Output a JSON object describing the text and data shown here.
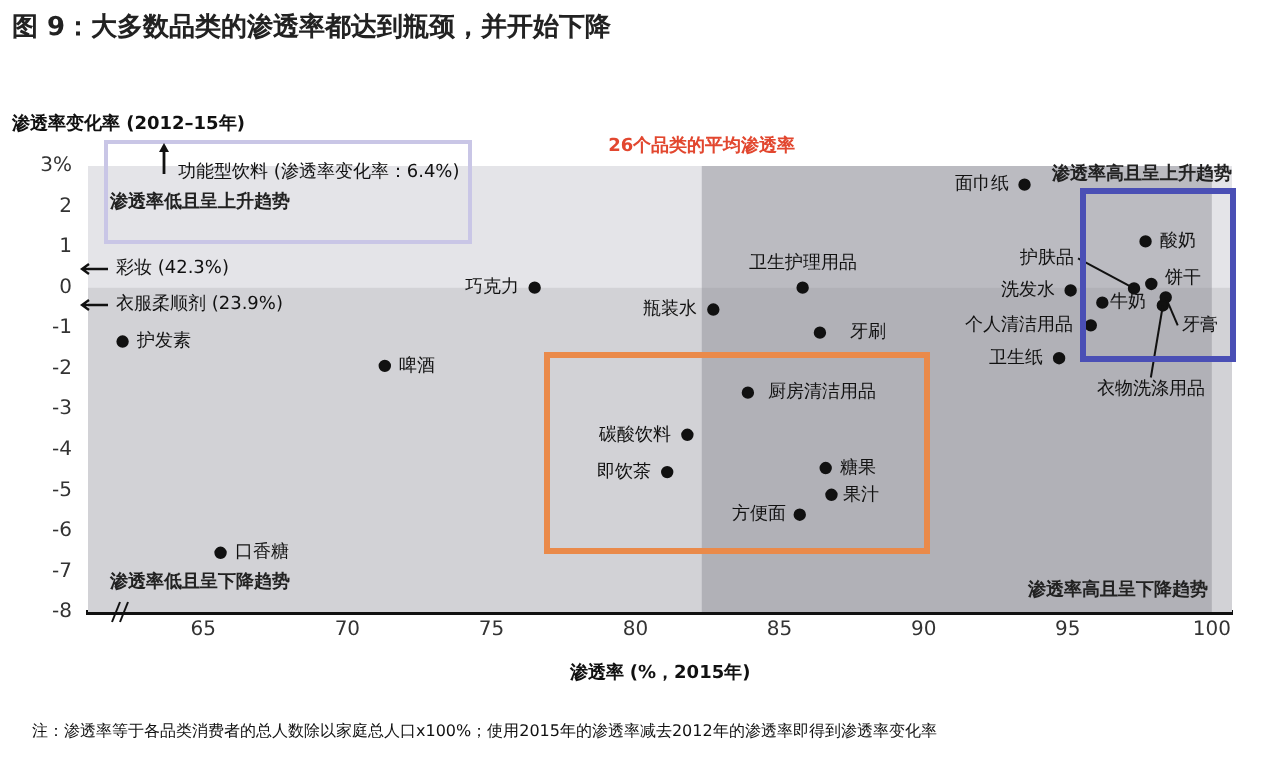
{
  "chart_data": {
    "type": "scatter",
    "title": "图 9：大多数品类的渗透率都达到瓶颈，并开始下降",
    "xlabel": "渗透率 (%，2015年)",
    "ylabel": "渗透率变化率 (2012–15年)",
    "x": [
      76.5,
      62.2,
      71.3,
      65.6,
      85.8,
      82.7,
      86.4,
      83.9,
      81.8,
      81.1,
      86.6,
      86.8,
      85.7,
      93.5,
      97.7,
      97.3,
      97.9,
      95.1,
      96.2,
      98.4,
      98.3,
      95.8,
      94.7
    ],
    "series": [
      {
        "color": "#111111",
        "values": [
          0.0,
          -1.33,
          -1.93,
          -6.54,
          0.0,
          -0.54,
          -1.11,
          -2.59,
          -3.63,
          -4.55,
          -4.45,
          -5.11,
          -5.6,
          2.54,
          1.14,
          -0.02,
          0.09,
          -0.07,
          -0.37,
          -0.24,
          -0.44,
          -0.93,
          -1.74
        ]
      }
    ],
    "marker": "circle",
    "legend": false,
    "xlim": [
      61,
      100.7
    ],
    "xticks": [
      65,
      70,
      75,
      80,
      85,
      90,
      95,
      100
    ],
    "ylim": [
      -8,
      3
    ],
    "yticks": [
      {
        "value": 3,
        "label": "3%"
      },
      2,
      1,
      0,
      -1,
      -2,
      -3,
      -4,
      -5,
      -6,
      -7,
      -8
    ],
    "bands": [
      {
        "axis": "y",
        "from": -8,
        "to": 3,
        "color": "#e4e4e8"
      },
      {
        "axis": "y",
        "from": -8,
        "to": 0,
        "color": "#d2d2d6"
      },
      {
        "axis": "x",
        "from": 82.3,
        "to": 100,
        "color": "#8a8a92",
        "label": "26个品类的平均渗透率"
      }
    ],
    "annotations": [
      "渗透率低且呈上升趋势",
      "渗透率高且呈上升趋势",
      "渗透率低且呈下降趋势",
      "渗透率高且呈下降趋势",
      "注：渗透率等于各品类消费者的总人数除以家庭总人口x100%；使用2015年的渗透率减去2012年的渗透率即得到渗透率变化率",
      "功能型饮料 (渗透率变化率：6.4%)",
      "彩妆 (42.3%)",
      "衣服柔顺剂 (23.9%)",
      {
        "text": "巧克力",
        "x": 76.5,
        "y": 0.0
      },
      {
        "text": "护发素",
        "x": 62.2,
        "y": -1.33
      },
      {
        "text": "啤酒",
        "x": 71.3,
        "y": -1.93
      },
      {
        "text": "口香糖",
        "x": 65.6,
        "y": -6.54
      },
      {
        "text": "卫生护理用品",
        "x": 85.8,
        "y": 0.0
      },
      {
        "text": "瓶装水",
        "x": 82.7,
        "y": -0.54
      },
      {
        "text": "牙刷",
        "x": 86.4,
        "y": -1.11
      },
      {
        "text": "厨房清洁用品",
        "x": 83.9,
        "y": -2.59
      },
      {
        "text": "碳酸饮料",
        "x": 81.8,
        "y": -3.63
      },
      {
        "text": "即饮茶",
        "x": 81.1,
        "y": -4.55
      },
      {
        "text": "糖果",
        "x": 86.6,
        "y": -4.45
      },
      {
        "text": "果汁",
        "x": 86.8,
        "y": -5.11
      },
      {
        "text": "方便面",
        "x": 85.7,
        "y": -5.6
      },
      {
        "text": "面巾纸",
        "x": 93.5,
        "y": 2.54
      },
      {
        "text": "酸奶",
        "x": 97.7,
        "y": 1.14
      },
      {
        "text": "护肤品",
        "x": 97.3,
        "y": -0.02
      },
      {
        "text": "饼干",
        "x": 97.9,
        "y": 0.09
      },
      {
        "text": "洗发水",
        "x": 95.1,
        "y": -0.07
      },
      {
        "text": "牛奶",
        "x": 96.2,
        "y": -0.37
      },
      {
        "text": "牙膏",
        "x": 98.4,
        "y": -0.24
      },
      {
        "text": "衣物洗涤用品",
        "x": 98.3,
        "y": -0.44
      },
      {
        "text": "个人清洁用品",
        "x": 95.8,
        "y": -0.93
      },
      {
        "text": "卫生纸",
        "x": 94.7,
        "y": -1.74
      }
    ]
  }
}
